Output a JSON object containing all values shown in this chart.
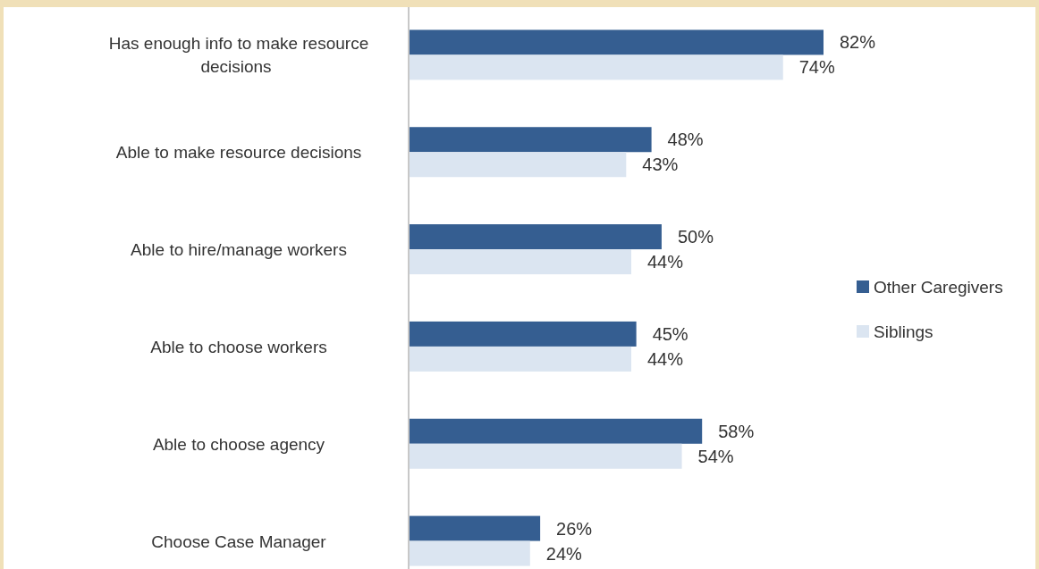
{
  "chart_data": {
    "type": "bar",
    "orientation": "horizontal",
    "categories": [
      "Has enough info to make resource decisions",
      "Able to make resource decisions",
      "Able to hire/manage workers",
      "Able to choose workers",
      "Able to choose agency",
      "Choose Case Manager"
    ],
    "series": [
      {
        "name": "Other Caregivers",
        "color": "#355e91",
        "values": [
          82,
          48,
          50,
          45,
          58,
          26
        ],
        "value_labels": [
          "82%",
          "48%",
          "50%",
          "45%",
          "58%",
          "26%"
        ]
      },
      {
        "name": "Siblings",
        "color": "#dbe5f1",
        "values": [
          74,
          43,
          44,
          44,
          54,
          24
        ],
        "value_labels": [
          "74%",
          "43%",
          "44%",
          "44%",
          "54%",
          "24%"
        ]
      }
    ],
    "legend": "right"
  }
}
